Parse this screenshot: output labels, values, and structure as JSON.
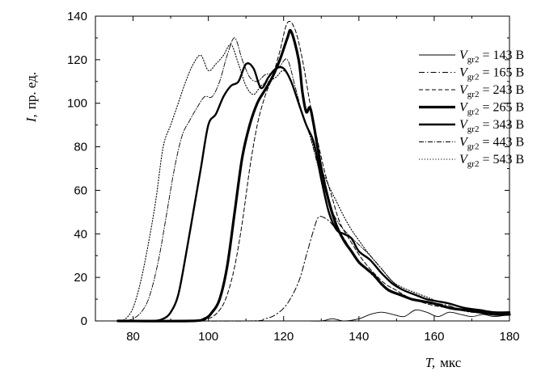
{
  "chart_data": {
    "type": "line",
    "title": "",
    "xlabel": {
      "var": "T,",
      "unit": "мкс"
    },
    "ylabel": {
      "var": "I,",
      "unit": "пр. ед."
    },
    "xlim": [
      70,
      180
    ],
    "ylim": [
      0,
      140
    ],
    "xticks": [
      "80",
      "100",
      "120",
      "140",
      "160",
      "180"
    ],
    "yticks": [
      "0",
      "20",
      "40",
      "60",
      "80",
      "100",
      "120",
      "140"
    ],
    "grid": false,
    "legend_position": "top-right",
    "series": [
      {
        "name": "143 В",
        "var": "V",
        "sub": "gr2",
        "eq": " = ",
        "style": "thin-solid",
        "x": [
          76,
          100,
          120,
          125,
          130,
          133,
          136,
          140,
          143,
          146,
          149,
          152,
          155,
          158,
          161,
          164,
          167,
          170,
          173,
          176,
          180
        ],
        "y": [
          0,
          0,
          0,
          0,
          0,
          1,
          0,
          1,
          3,
          4,
          3,
          2,
          5,
          4,
          2,
          4,
          3,
          2,
          3,
          2,
          3
        ]
      },
      {
        "name": "165 В",
        "var": "V",
        "sub": "gr2",
        "eq": " = ",
        "style": "dash-dot",
        "x": [
          76,
          110,
          115,
          118,
          121,
          124,
          126,
          128,
          129,
          130,
          132,
          134,
          136,
          138,
          140,
          143,
          146,
          149,
          152,
          155,
          158,
          161,
          164,
          167,
          170,
          173,
          176,
          180
        ],
        "y": [
          0,
          0,
          1,
          3,
          8,
          18,
          30,
          42,
          47,
          48,
          46,
          42,
          38,
          32,
          27,
          22,
          17,
          13,
          11,
          10,
          9,
          8,
          7,
          5,
          4,
          4,
          3,
          3
        ]
      },
      {
        "name": "243 В",
        "var": "V",
        "sub": "gr2",
        "eq": " = ",
        "style": "dashed",
        "x": [
          76,
          95,
          100,
          103,
          105,
          107,
          109,
          111,
          113,
          115,
          117,
          119,
          121,
          123,
          125,
          127,
          129,
          131,
          133,
          135,
          138,
          141,
          144,
          147,
          150,
          153,
          156,
          160,
          164,
          168,
          172,
          176,
          180
        ],
        "y": [
          0,
          0,
          1,
          5,
          12,
          25,
          45,
          70,
          90,
          103,
          112,
          124,
          137,
          134,
          120,
          100,
          83,
          68,
          56,
          45,
          36,
          28,
          22,
          17,
          14,
          11,
          9,
          7,
          6,
          5,
          4,
          3,
          3
        ]
      },
      {
        "name": "265 В",
        "var": "V",
        "sub": "gr2",
        "eq": " = ",
        "style": "thick-solid",
        "x": [
          76,
          95,
          99,
          101,
          103,
          105,
          107,
          109,
          111,
          113,
          115,
          117,
          119,
          121,
          122,
          124,
          125,
          126,
          127,
          128,
          130,
          132,
          134,
          136,
          138,
          140,
          142,
          144,
          146,
          148,
          151,
          154,
          157,
          160,
          164,
          168,
          172,
          176,
          180
        ],
        "y": [
          0,
          0,
          1,
          4,
          10,
          25,
          50,
          75,
          90,
          100,
          106,
          112,
          120,
          130,
          133,
          120,
          105,
          96,
          98,
          90,
          70,
          55,
          44,
          37,
          32,
          27,
          24,
          21,
          17,
          14,
          12,
          10,
          9,
          8,
          6,
          5,
          4,
          3,
          3
        ]
      },
      {
        "name": "343 В",
        "var": "V",
        "sub": "gr2",
        "eq": " = ",
        "style": "medium-solid",
        "x": [
          76,
          85,
          88,
          90,
          92,
          94,
          96,
          98,
          100,
          102,
          104,
          106,
          108,
          110,
          112,
          114,
          116,
          118,
          120,
          122,
          124,
          126,
          128,
          130,
          132,
          134,
          136,
          138,
          140,
          143,
          146,
          149,
          152,
          155,
          158,
          161,
          164,
          168,
          172,
          176,
          180
        ],
        "y": [
          0,
          0,
          1,
          4,
          12,
          30,
          50,
          70,
          90,
          95,
          103,
          108,
          110,
          118,
          116,
          107,
          112,
          116,
          116,
          110,
          100,
          90,
          82,
          65,
          50,
          42,
          40,
          38,
          32,
          28,
          22,
          17,
          14,
          12,
          10,
          9,
          8,
          6,
          5,
          4,
          4
        ]
      },
      {
        "name": "443 В",
        "var": "V",
        "sub": "gr2",
        "eq": " = ",
        "style": "dash-dot-fine",
        "x": [
          76,
          80,
          83,
          85,
          87,
          89,
          91,
          93,
          95,
          97,
          99,
          101,
          103,
          105,
          107,
          109,
          111,
          113,
          115,
          117,
          119,
          121,
          123,
          125,
          127,
          129,
          131,
          133,
          135,
          137,
          140,
          143,
          146,
          149,
          152,
          155,
          158,
          161,
          164,
          168,
          172,
          176,
          180
        ],
        "y": [
          0,
          1,
          6,
          15,
          30,
          50,
          70,
          85,
          92,
          98,
          103,
          103,
          110,
          122,
          130,
          120,
          112,
          110,
          113,
          114,
          117,
          120,
          108,
          95,
          85,
          72,
          60,
          50,
          44,
          40,
          35,
          30,
          24,
          18,
          14,
          12,
          10,
          9,
          8,
          6,
          5,
          4,
          3
        ]
      },
      {
        "name": "543 В",
        "var": "V",
        "sub": "gr2",
        "eq": " = ",
        "style": "dotted",
        "x": [
          76,
          78,
          80,
          82,
          84,
          86,
          88,
          90,
          92,
          94,
          96,
          98,
          100,
          102,
          104,
          106,
          108,
          110,
          112,
          114,
          116,
          118,
          120,
          122,
          124,
          126,
          128,
          130,
          132,
          134,
          136,
          138,
          140,
          143,
          146,
          149,
          152,
          155,
          158,
          161,
          164,
          168,
          172,
          176,
          180
        ],
        "y": [
          0,
          1,
          6,
          18,
          35,
          55,
          80,
          90,
          100,
          110,
          118,
          122,
          115,
          118,
          122,
          127,
          118,
          108,
          104,
          108,
          110,
          112,
          115,
          110,
          100,
          90,
          80,
          70,
          62,
          55,
          48,
          42,
          37,
          30,
          24,
          18,
          15,
          13,
          11,
          9,
          8,
          6,
          5,
          4,
          3
        ]
      }
    ]
  }
}
